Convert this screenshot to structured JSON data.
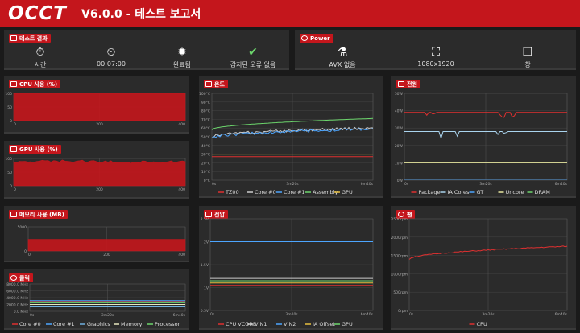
{
  "header": {
    "logo": "OCCT",
    "title": "V6.0.0 - 테스트 보고서"
  },
  "result_panel": {
    "tag": "테스트 결과",
    "stats": [
      {
        "icon": "stopwatch-icon",
        "label": "시간"
      },
      {
        "icon": "timer-icon",
        "label": "00:07:00"
      },
      {
        "icon": "badge-icon",
        "label": "완료됨"
      },
      {
        "icon": "check-circle-icon",
        "label": "감지된 오류 없음"
      }
    ]
  },
  "power_panel": {
    "tag": "Power",
    "stats": [
      {
        "icon": "flask-icon",
        "label": "AVX 없음"
      },
      {
        "icon": "expand-icon",
        "label": "1080x1920"
      },
      {
        "icon": "windows-icon",
        "label": "창"
      }
    ]
  },
  "panels": {
    "cpu": {
      "tag": "CPU 사용 (%)"
    },
    "gpu": {
      "tag": "GPU 사용 (%)"
    },
    "mem": {
      "tag": "메모리 사용 (MB)"
    },
    "clock": {
      "tag": "클럭"
    },
    "temp": {
      "tag": "온도"
    },
    "volt": {
      "tag": "전압"
    },
    "power": {
      "tag": "전원"
    },
    "fan": {
      "tag": "팬"
    }
  },
  "chart_data": [
    {
      "id": "cpu",
      "type": "area",
      "color": "#c4161c",
      "yticks": [
        "100",
        "50",
        "0"
      ],
      "xticks": [
        "0",
        "200",
        "400"
      ],
      "values": [
        100,
        100,
        100,
        100
      ]
    },
    {
      "id": "gpu",
      "type": "area",
      "color": "#c4161c",
      "yticks": [
        "100",
        "50",
        "0"
      ],
      "xticks": [
        "0",
        "200",
        "400"
      ],
      "values": [
        92,
        95,
        90,
        94
      ]
    },
    {
      "id": "mem",
      "type": "area",
      "color": "#c4161c",
      "yticks": [
        "5000",
        "0"
      ],
      "xticks": [
        "0",
        "200",
        "400"
      ],
      "values": [
        2400,
        2400,
        2400,
        2400
      ]
    },
    {
      "id": "clock",
      "type": "line",
      "yticks": [
        "8000.0 MHz",
        "6000.0 MHz",
        "4000.0 MHz",
        "2000.0 MHz",
        "0.0 MHz"
      ],
      "xticks": [
        "0s",
        "3m20s",
        "6m40s"
      ],
      "series": [
        {
          "name": "Core #0",
          "color": "#e03030",
          "values": [
            3000,
            3000
          ]
        },
        {
          "name": "Core #1",
          "color": "#4da6ff",
          "values": [
            3100,
            3100
          ]
        },
        {
          "name": "Graphics",
          "color": "#6fb0e0",
          "values": [
            1300,
            1300
          ]
        },
        {
          "name": "Memory",
          "color": "#e8e8c0",
          "values": [
            2000,
            2000
          ]
        },
        {
          "name": "Processor",
          "color": "#6cd66c",
          "values": [
            2500,
            2500
          ]
        }
      ]
    },
    {
      "id": "temp",
      "type": "line",
      "yticks": [
        "100°C",
        "90°C",
        "80°C",
        "70°C",
        "60°C",
        "50°C",
        "40°C",
        "30°C",
        "20°C",
        "10°C",
        "0°C"
      ],
      "xticks": [
        "0s",
        "3m20s",
        "6m40s"
      ],
      "series": [
        {
          "name": "TZ00",
          "color": "#e03030",
          "values": [
            27,
            27
          ]
        },
        {
          "name": "Core #0",
          "color": "#cccccc",
          "values": [
            50,
            60
          ]
        },
        {
          "name": "Core #1",
          "color": "#4da6ff",
          "values": [
            49,
            59
          ]
        },
        {
          "name": "Assembly",
          "color": "#6cd66c",
          "values": [
            58,
            71
          ]
        },
        {
          "name": "GPU",
          "color": "#e8c040",
          "values": [
            30,
            30
          ]
        }
      ]
    },
    {
      "id": "volt",
      "type": "line",
      "yticks": [
        "2.5V",
        "2V",
        "1.5V",
        "1V",
        "0.5V"
      ],
      "xticks": [
        "0s",
        "3m20s",
        "6m40s"
      ],
      "series": [
        {
          "name": "CPU VCORE",
          "color": "#e03030",
          "values": [
            1.05,
            1.05
          ]
        },
        {
          "name": "VIN1",
          "color": "#cccccc",
          "values": [
            1.2,
            1.2
          ]
        },
        {
          "name": "VIN2",
          "color": "#4da6ff",
          "values": [
            2.0,
            2.0
          ]
        },
        {
          "name": "IA Offset",
          "color": "#e8c040",
          "values": [
            1.1,
            1.1
          ]
        },
        {
          "name": "GPU",
          "color": "#6cd66c",
          "values": [
            1.15,
            1.15
          ]
        }
      ]
    },
    {
      "id": "power",
      "type": "line",
      "yticks": [
        "50W",
        "40W",
        "30W",
        "20W",
        "10W",
        "0W"
      ],
      "xticks": [
        "0s",
        "3m20s",
        "6m40s"
      ],
      "series": [
        {
          "name": "Package",
          "color": "#e03030",
          "values": [
            39,
            39
          ]
        },
        {
          "name": "IA Cores",
          "color": "#aad4ee",
          "values": [
            28,
            28
          ]
        },
        {
          "name": "GT",
          "color": "#4da6ff",
          "values": [
            0.5,
            0.5
          ]
        },
        {
          "name": "Uncore",
          "color": "#e8e8a0",
          "values": [
            10,
            10
          ]
        },
        {
          "name": "DRAM",
          "color": "#6cd66c",
          "values": [
            3,
            3
          ]
        }
      ]
    },
    {
      "id": "fan",
      "type": "line",
      "yticks": [
        "2500rpm",
        "2000rpm",
        "1500rpm",
        "1000rpm",
        "500rpm",
        "0rpm"
      ],
      "xticks": [
        "0s",
        "3m20s",
        "6m40s"
      ],
      "series": [
        {
          "name": "CPU",
          "color": "#e03030",
          "values": [
            1400,
            1750
          ]
        }
      ]
    }
  ]
}
